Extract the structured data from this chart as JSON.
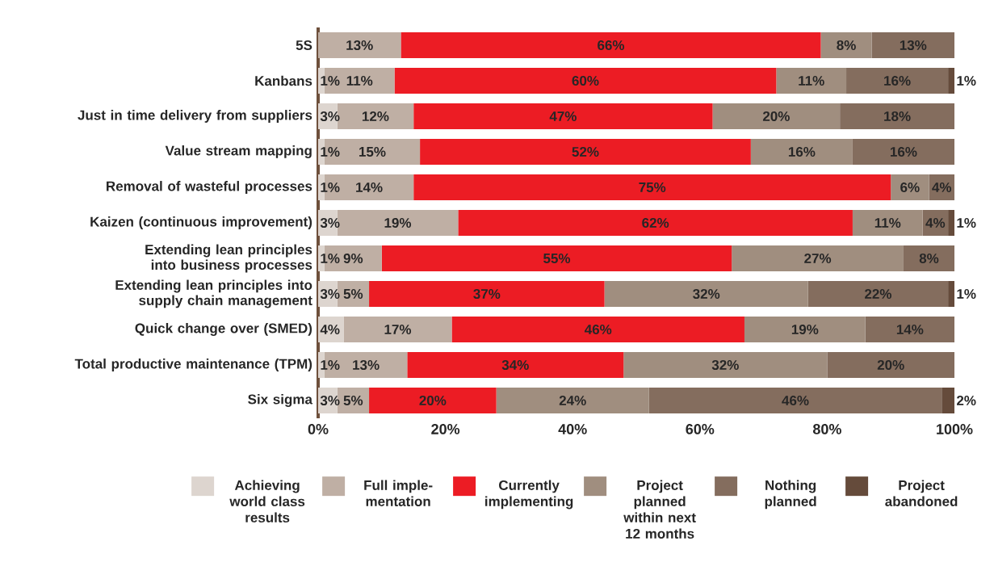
{
  "chart_data": {
    "type": "bar",
    "orientation": "horizontal",
    "stacked": true,
    "categories": [
      "5S",
      "Kanbans",
      "Just in time delivery from suppliers",
      "Value stream mapping",
      "Removal of wasteful processes",
      "Kaizen (continuous improvement)",
      "Extending lean principles into business processes",
      "Extending lean principles into supply chain management",
      "Quick change over (SMED)",
      "Total productive maintenance (TPM)",
      "Six sigma"
    ],
    "xlim": [
      0,
      100
    ],
    "xticks": [
      {
        "value": 0,
        "label": "0%"
      },
      {
        "value": 20,
        "label": "20%"
      },
      {
        "value": 40,
        "label": "40%"
      },
      {
        "value": 60,
        "label": "60%"
      },
      {
        "value": 80,
        "label": "80%"
      },
      {
        "value": 100,
        "label": "100%"
      }
    ],
    "legend": "bottom",
    "series": [
      {
        "name": "Achieving world class results",
        "color": "#ddd5cf",
        "values": [
          0,
          1,
          3,
          1,
          1,
          3,
          1,
          3,
          4,
          1,
          3
        ],
        "value_labels": [
          null,
          "1%",
          "3%",
          "1%",
          "1%",
          "3%",
          "1%",
          "3%",
          "4%",
          "1%",
          "3%"
        ]
      },
      {
        "name": "Full imple-mentation",
        "color": "#bfafa4",
        "values": [
          13,
          11,
          12,
          15,
          14,
          19,
          9,
          5,
          17,
          13,
          5
        ],
        "value_labels": [
          "13%",
          "11%",
          "12%",
          "15%",
          "14%",
          "19%",
          "9%",
          "5%",
          "17%",
          "13%",
          "5%"
        ]
      },
      {
        "name": "Currently implementing",
        "color": "#ec1c24",
        "values": [
          66,
          60,
          47,
          52,
          75,
          62,
          55,
          37,
          46,
          34,
          20
        ],
        "value_labels": [
          "66%",
          "60%",
          "47%",
          "52%",
          "75%",
          "62%",
          "55%",
          "37%",
          "46%",
          "34%",
          "20%"
        ]
      },
      {
        "name": "Project planned within next 12 months",
        "color": "#a08e7f",
        "values": [
          8,
          11,
          20,
          16,
          6,
          11,
          27,
          32,
          19,
          32,
          24
        ],
        "value_labels": [
          "8%",
          "11%",
          "20%",
          "16%",
          "6%",
          "11%",
          "27%",
          "32%",
          "19%",
          "32%",
          "24%"
        ]
      },
      {
        "name": "Nothing planned",
        "color": "#846d5e",
        "values": [
          13,
          16,
          18,
          16,
          4,
          4,
          8,
          22,
          14,
          20,
          46
        ],
        "value_labels": [
          "13%",
          "16%",
          "18%",
          "16%",
          "4%",
          "4%",
          "8%",
          "22%",
          "14%",
          "20%",
          "46%"
        ]
      },
      {
        "name": "Project abandoned",
        "color": "#654b3b",
        "values": [
          0,
          1,
          0,
          0,
          0,
          1,
          0,
          1,
          0,
          0,
          2
        ],
        "value_labels": [
          null,
          "1%",
          null,
          null,
          null,
          "1%",
          null,
          "1%",
          null,
          null,
          "2%"
        ]
      }
    ]
  }
}
